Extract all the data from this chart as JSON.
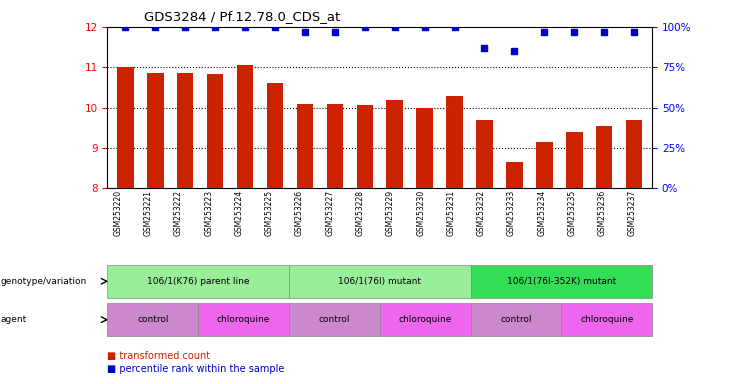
{
  "title": "GDS3284 / Pf.12.78.0_CDS_at",
  "samples": [
    "GSM253220",
    "GSM253221",
    "GSM253222",
    "GSM253223",
    "GSM253224",
    "GSM253225",
    "GSM253226",
    "GSM253227",
    "GSM253228",
    "GSM253229",
    "GSM253230",
    "GSM253231",
    "GSM253232",
    "GSM253233",
    "GSM253234",
    "GSM253235",
    "GSM253236",
    "GSM253237"
  ],
  "bar_values": [
    11.0,
    10.85,
    10.85,
    10.82,
    11.05,
    10.62,
    10.08,
    10.08,
    10.07,
    10.18,
    9.99,
    10.28,
    9.68,
    8.65,
    9.15,
    9.4,
    9.55,
    9.68
  ],
  "percentile_values": [
    100,
    100,
    100,
    100,
    100,
    100,
    97,
    97,
    100,
    100,
    100,
    100,
    87,
    85,
    97,
    97,
    97,
    97
  ],
  "ylim_left": [
    8,
    12
  ],
  "ylim_right": [
    0,
    100
  ],
  "yticks_left": [
    8,
    9,
    10,
    11,
    12
  ],
  "yticks_right": [
    0,
    25,
    50,
    75,
    100
  ],
  "bar_color": "#cc2200",
  "percentile_color": "#0000cc",
  "genotype_groups": [
    {
      "label": "106/1(K76) parent line",
      "start": 0,
      "end": 5,
      "color": "#99ee99"
    },
    {
      "label": "106/1(76I) mutant",
      "start": 6,
      "end": 11,
      "color": "#99ee99"
    },
    {
      "label": "106/1(76I-352K) mutant",
      "start": 12,
      "end": 17,
      "color": "#33dd55"
    }
  ],
  "agent_groups": [
    {
      "label": "control",
      "start": 0,
      "end": 2,
      "color": "#cc88cc"
    },
    {
      "label": "chloroquine",
      "start": 3,
      "end": 5,
      "color": "#ee66ee"
    },
    {
      "label": "control",
      "start": 6,
      "end": 8,
      "color": "#cc88cc"
    },
    {
      "label": "chloroquine",
      "start": 9,
      "end": 11,
      "color": "#ee66ee"
    },
    {
      "label": "control",
      "start": 12,
      "end": 14,
      "color": "#cc88cc"
    },
    {
      "label": "chloroquine",
      "start": 15,
      "end": 17,
      "color": "#ee66ee"
    }
  ]
}
